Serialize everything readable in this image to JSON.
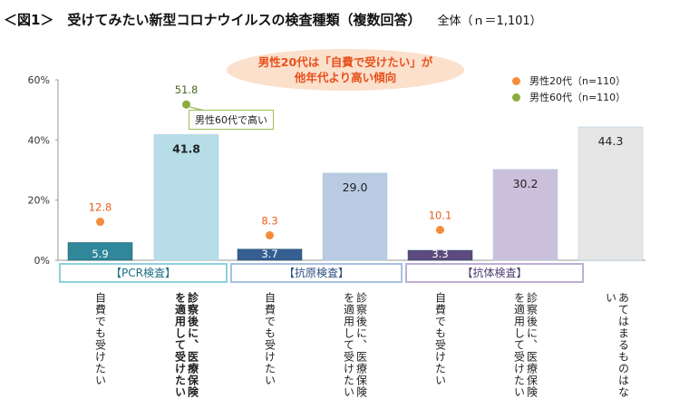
{
  "title": "＜図1＞　受けてみたい新型コロナウイルスの検査種類（複数回答）",
  "subtitle": "全体（ｎ＝1,101）",
  "callout": [
    "男性20代は「自費で受けたい」が",
    "他年代より高い傾向"
  ],
  "note": "男性60代で高い",
  "chart_data": {
    "type": "bar",
    "ylim": [
      0,
      60
    ],
    "yticks": [
      "0%",
      "20%",
      "40%",
      "60%"
    ],
    "ytick_values": [
      0,
      20,
      40,
      60
    ],
    "groups": [
      {
        "label": "【PCR検査】",
        "color": "#8fd0de"
      },
      {
        "label": "【抗原検査】",
        "color": "#a8c0e0"
      },
      {
        "label": "【抗体検査】",
        "color": "#bcaed4"
      }
    ],
    "categories": [
      "自費でも受けたい",
      "診察後に、医療保険を適用して受けたい",
      "自費でも受けたい",
      "診察後に、医療保険を適用して受けたい",
      "自費でも受けたい",
      "診察後に、医療保険を適用して受けたい",
      "あてはまるものはない"
    ],
    "values": [
      5.9,
      41.8,
      3.7,
      29.0,
      3.3,
      30.2,
      44.3
    ],
    "value_labels": [
      "5.9",
      "41.8",
      "3.7",
      "29.0",
      "3.3",
      "30.2",
      "44.3"
    ],
    "bar_colors": [
      "#2f8799",
      "#b6dde8",
      "#355e91",
      "#b9cce4",
      "#5d4a7e",
      "#cbc0dc",
      "#e6e6e6"
    ],
    "series": [
      {
        "name": "男性20代（n=110）",
        "color": "#f58c3c",
        "points": [
          {
            "index": 0,
            "value": 12.8,
            "label": "12.8"
          },
          {
            "index": 2,
            "value": 8.3,
            "label": "8.3"
          },
          {
            "index": 4,
            "value": 10.1,
            "label": "10.1"
          }
        ]
      },
      {
        "name": "男性60代（n=110）",
        "color": "#8aac3e",
        "points": [
          {
            "index": 1,
            "value": 51.8,
            "label": "51.8"
          }
        ]
      }
    ]
  }
}
